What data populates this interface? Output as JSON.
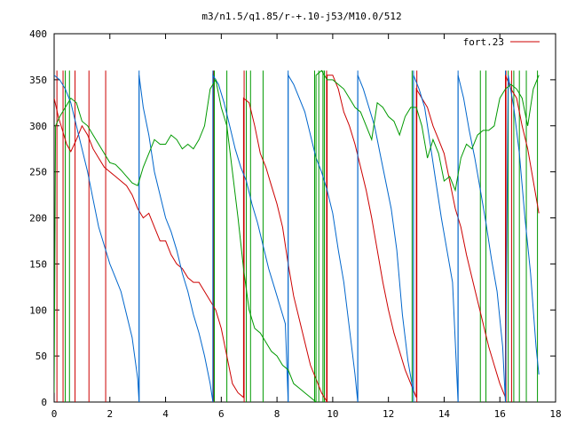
{
  "chart_data": {
    "type": "line",
    "title": "m3/n1.5/q1.85/r-+.10-j53/M10.0/512",
    "xlabel": "",
    "ylabel": "",
    "xlim": [
      0,
      18
    ],
    "ylim": [
      0,
      400
    ],
    "x_ticks": [
      0,
      2,
      4,
      6,
      8,
      10,
      12,
      14,
      16,
      18
    ],
    "y_ticks": [
      0,
      50,
      100,
      150,
      200,
      250,
      300,
      350,
      400
    ],
    "grid": false,
    "legend_position": "top-right",
    "legend": [
      {
        "name": "fort.23",
        "color": "#cc0000"
      }
    ],
    "series": [
      {
        "name": "fort.23",
        "color": "#cc0000",
        "points": [
          [
            0.0,
            330
          ],
          [
            0.15,
            310
          ],
          [
            0.3,
            295
          ],
          [
            0.45,
            280
          ],
          [
            0.6,
            272
          ],
          [
            0.8,
            285
          ],
          [
            1.0,
            300
          ],
          [
            1.2,
            290
          ],
          [
            1.4,
            275
          ],
          [
            1.6,
            265
          ],
          [
            1.8,
            255
          ],
          [
            2.0,
            250
          ],
          [
            2.2,
            245
          ],
          [
            2.4,
            240
          ],
          [
            2.6,
            235
          ],
          [
            2.8,
            225
          ],
          [
            3.0,
            210
          ],
          [
            3.2,
            200
          ],
          [
            3.4,
            205
          ],
          [
            3.6,
            190
          ],
          [
            3.8,
            175
          ],
          [
            4.0,
            175
          ],
          [
            4.2,
            160
          ],
          [
            4.4,
            150
          ],
          [
            4.6,
            145
          ],
          [
            4.8,
            135
          ],
          [
            5.0,
            130
          ],
          [
            5.2,
            130
          ],
          [
            5.4,
            120
          ],
          [
            5.6,
            110
          ],
          [
            5.8,
            100
          ],
          [
            6.0,
            80
          ],
          [
            6.2,
            50
          ],
          [
            6.4,
            20
          ],
          [
            6.6,
            10
          ],
          [
            6.8,
            5
          ],
          [
            6.8,
            330
          ],
          [
            7.0,
            325
          ],
          [
            7.2,
            300
          ],
          [
            7.4,
            270
          ],
          [
            7.6,
            255
          ],
          [
            7.8,
            235
          ],
          [
            8.0,
            215
          ],
          [
            8.2,
            190
          ],
          [
            8.4,
            150
          ],
          [
            8.6,
            115
          ],
          [
            8.8,
            90
          ],
          [
            9.0,
            65
          ],
          [
            9.2,
            40
          ],
          [
            9.4,
            25
          ],
          [
            9.6,
            10
          ],
          [
            9.8,
            0
          ],
          [
            9.8,
            355
          ],
          [
            10.0,
            355
          ],
          [
            10.2,
            340
          ],
          [
            10.4,
            315
          ],
          [
            10.6,
            300
          ],
          [
            10.8,
            280
          ],
          [
            11.0,
            255
          ],
          [
            11.2,
            230
          ],
          [
            11.4,
            200
          ],
          [
            11.6,
            165
          ],
          [
            11.8,
            130
          ],
          [
            12.0,
            100
          ],
          [
            12.2,
            75
          ],
          [
            12.4,
            55
          ],
          [
            12.6,
            35
          ],
          [
            12.8,
            20
          ],
          [
            13.0,
            5
          ],
          [
            13.0,
            340
          ],
          [
            13.2,
            330
          ],
          [
            13.4,
            320
          ],
          [
            13.6,
            300
          ],
          [
            13.8,
            285
          ],
          [
            14.0,
            270
          ],
          [
            14.2,
            240
          ],
          [
            14.4,
            210
          ],
          [
            14.6,
            190
          ],
          [
            14.8,
            160
          ],
          [
            15.0,
            135
          ],
          [
            15.2,
            110
          ],
          [
            15.4,
            85
          ],
          [
            15.6,
            60
          ],
          [
            15.8,
            40
          ],
          [
            16.0,
            20
          ],
          [
            16.2,
            5
          ],
          [
            16.2,
            355
          ],
          [
            16.4,
            340
          ],
          [
            16.6,
            330
          ],
          [
            16.8,
            300
          ],
          [
            17.0,
            275
          ],
          [
            17.2,
            240
          ],
          [
            17.4,
            205
          ]
        ]
      },
      {
        "name": "",
        "color": "#0066cc",
        "points": [
          [
            0.0,
            355
          ],
          [
            0.2,
            350
          ],
          [
            0.4,
            340
          ],
          [
            0.6,
            325
          ],
          [
            0.8,
            300
          ],
          [
            1.0,
            275
          ],
          [
            1.2,
            250
          ],
          [
            1.4,
            220
          ],
          [
            1.6,
            190
          ],
          [
            1.8,
            170
          ],
          [
            2.0,
            150
          ],
          [
            2.2,
            135
          ],
          [
            2.4,
            120
          ],
          [
            2.6,
            95
          ],
          [
            2.8,
            70
          ],
          [
            3.0,
            25
          ],
          [
            3.05,
            0
          ],
          [
            3.05,
            355
          ],
          [
            3.2,
            320
          ],
          [
            3.4,
            290
          ],
          [
            3.6,
            250
          ],
          [
            3.8,
            225
          ],
          [
            4.0,
            200
          ],
          [
            4.2,
            185
          ],
          [
            4.4,
            165
          ],
          [
            4.6,
            140
          ],
          [
            4.8,
            120
          ],
          [
            5.0,
            95
          ],
          [
            5.2,
            75
          ],
          [
            5.4,
            50
          ],
          [
            5.6,
            20
          ],
          [
            5.7,
            0
          ],
          [
            5.7,
            355
          ],
          [
            5.9,
            345
          ],
          [
            6.1,
            325
          ],
          [
            6.3,
            300
          ],
          [
            6.5,
            275
          ],
          [
            6.7,
            255
          ],
          [
            6.9,
            240
          ],
          [
            7.1,
            215
          ],
          [
            7.3,
            195
          ],
          [
            7.5,
            170
          ],
          [
            7.7,
            145
          ],
          [
            7.9,
            125
          ],
          [
            8.1,
            105
          ],
          [
            8.3,
            85
          ],
          [
            8.4,
            0
          ],
          [
            8.4,
            355
          ],
          [
            8.6,
            345
          ],
          [
            8.8,
            330
          ],
          [
            9.0,
            315
          ],
          [
            9.2,
            290
          ],
          [
            9.4,
            265
          ],
          [
            9.6,
            250
          ],
          [
            9.8,
            230
          ],
          [
            10.0,
            205
          ],
          [
            10.2,
            165
          ],
          [
            10.4,
            130
          ],
          [
            10.6,
            80
          ],
          [
            10.8,
            30
          ],
          [
            10.9,
            0
          ],
          [
            10.9,
            355
          ],
          [
            11.1,
            340
          ],
          [
            11.3,
            320
          ],
          [
            11.5,
            300
          ],
          [
            11.7,
            270
          ],
          [
            11.9,
            240
          ],
          [
            12.1,
            210
          ],
          [
            12.3,
            165
          ],
          [
            12.5,
            95
          ],
          [
            12.7,
            45
          ],
          [
            12.9,
            10
          ],
          [
            12.9,
            355
          ],
          [
            13.1,
            340
          ],
          [
            13.3,
            320
          ],
          [
            13.5,
            280
          ],
          [
            13.7,
            240
          ],
          [
            13.9,
            200
          ],
          [
            14.1,
            165
          ],
          [
            14.3,
            130
          ],
          [
            14.5,
            0
          ],
          [
            14.5,
            355
          ],
          [
            14.7,
            330
          ],
          [
            14.9,
            295
          ],
          [
            15.1,
            265
          ],
          [
            15.3,
            230
          ],
          [
            15.5,
            195
          ],
          [
            15.7,
            155
          ],
          [
            15.9,
            120
          ],
          [
            16.1,
            60
          ],
          [
            16.2,
            0
          ],
          [
            16.3,
            355
          ],
          [
            16.5,
            320
          ],
          [
            16.7,
            270
          ],
          [
            16.9,
            200
          ],
          [
            17.1,
            140
          ],
          [
            17.3,
            60
          ],
          [
            17.4,
            30
          ]
        ]
      },
      {
        "name": "",
        "color": "#009900",
        "points": [
          [
            0.0,
            10
          ],
          [
            0.05,
            300
          ],
          [
            0.2,
            310
          ],
          [
            0.4,
            320
          ],
          [
            0.6,
            330
          ],
          [
            0.8,
            325
          ],
          [
            1.0,
            305
          ],
          [
            1.2,
            300
          ],
          [
            1.4,
            290
          ],
          [
            1.6,
            280
          ],
          [
            1.8,
            270
          ],
          [
            2.0,
            260
          ],
          [
            2.2,
            258
          ],
          [
            2.4,
            252
          ],
          [
            2.6,
            245
          ],
          [
            2.8,
            238
          ],
          [
            3.0,
            235
          ],
          [
            3.2,
            255
          ],
          [
            3.4,
            270
          ],
          [
            3.6,
            285
          ],
          [
            3.8,
            280
          ],
          [
            4.0,
            280
          ],
          [
            4.2,
            290
          ],
          [
            4.4,
            285
          ],
          [
            4.6,
            275
          ],
          [
            4.8,
            280
          ],
          [
            5.0,
            275
          ],
          [
            5.2,
            285
          ],
          [
            5.4,
            300
          ],
          [
            5.6,
            340
          ],
          [
            5.8,
            350
          ],
          [
            6.0,
            320
          ],
          [
            6.2,
            300
          ],
          [
            6.4,
            250
          ],
          [
            6.6,
            200
          ],
          [
            6.8,
            145
          ],
          [
            7.0,
            100
          ],
          [
            7.2,
            80
          ],
          [
            7.4,
            75
          ],
          [
            7.6,
            65
          ],
          [
            7.8,
            55
          ],
          [
            8.0,
            50
          ],
          [
            8.2,
            40
          ],
          [
            8.4,
            35
          ],
          [
            8.6,
            20
          ],
          [
            8.8,
            15
          ],
          [
            9.0,
            10
          ],
          [
            9.2,
            5
          ],
          [
            9.4,
            0
          ],
          [
            9.4,
            355
          ],
          [
            9.6,
            360
          ],
          [
            9.8,
            350
          ],
          [
            10.0,
            350
          ],
          [
            10.2,
            345
          ],
          [
            10.4,
            340
          ],
          [
            10.6,
            330
          ],
          [
            10.8,
            320
          ],
          [
            11.0,
            315
          ],
          [
            11.2,
            300
          ],
          [
            11.4,
            285
          ],
          [
            11.6,
            325
          ],
          [
            11.8,
            320
          ],
          [
            12.0,
            310
          ],
          [
            12.2,
            305
          ],
          [
            12.4,
            290
          ],
          [
            12.6,
            310
          ],
          [
            12.8,
            320
          ],
          [
            13.0,
            320
          ],
          [
            13.2,
            300
          ],
          [
            13.4,
            265
          ],
          [
            13.6,
            285
          ],
          [
            13.8,
            270
          ],
          [
            14.0,
            240
          ],
          [
            14.2,
            245
          ],
          [
            14.4,
            230
          ],
          [
            14.6,
            265
          ],
          [
            14.8,
            280
          ],
          [
            15.0,
            275
          ],
          [
            15.2,
            290
          ],
          [
            15.4,
            295
          ],
          [
            15.6,
            295
          ],
          [
            15.8,
            300
          ],
          [
            16.0,
            330
          ],
          [
            16.2,
            340
          ],
          [
            16.4,
            345
          ],
          [
            16.6,
            340
          ],
          [
            16.8,
            330
          ],
          [
            17.0,
            300
          ],
          [
            17.2,
            340
          ],
          [
            17.4,
            355
          ]
        ]
      }
    ],
    "vertical_spikes": [
      {
        "color": "#cc0000",
        "x": [
          0.1,
          0.32,
          0.75,
          1.25,
          1.85,
          5.72,
          6.82,
          9.78,
          13.02,
          16.22,
          16.42
        ]
      },
      {
        "color": "#0066cc",
        "x": [
          3.05,
          5.7,
          8.4,
          10.9,
          12.9,
          14.5,
          16.2
        ]
      },
      {
        "color": "#009900",
        "x": [
          0.4,
          0.55,
          5.75,
          6.2,
          6.9,
          7.05,
          7.5,
          9.35,
          9.5,
          9.65,
          9.7,
          12.85,
          15.3,
          15.5,
          16.3,
          16.5,
          16.7,
          16.95,
          17.35
        ]
      }
    ]
  }
}
